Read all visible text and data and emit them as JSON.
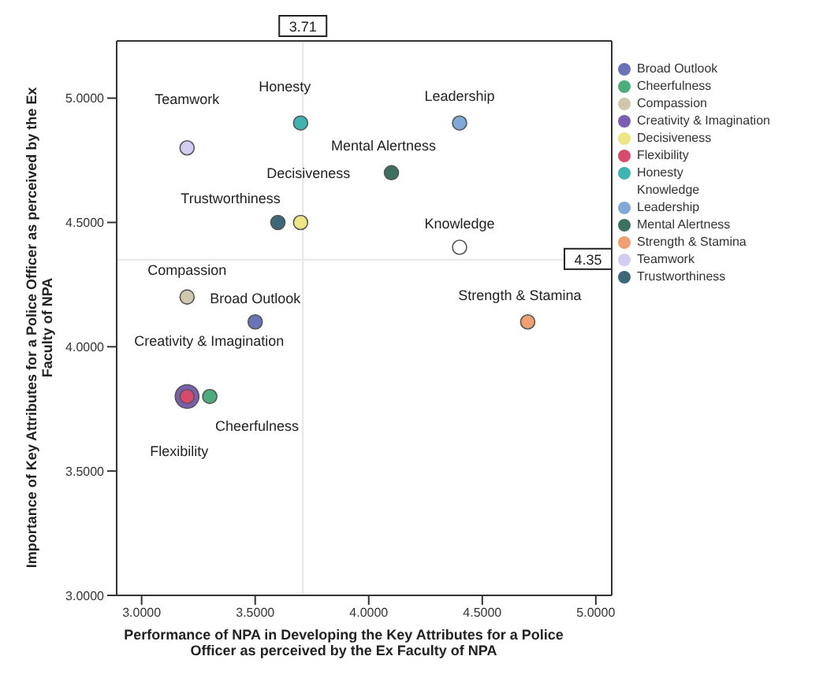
{
  "chart_data": {
    "type": "scatter",
    "xlabel": "Performance of NPA in Developing the Key Attributes for a Police Officer as perceived by the Ex Faculty of NPA",
    "ylabel": "Importance of Key Attributes for a Police Officer as perceived by the Ex Faculty of NPA",
    "xlim": [
      2.89,
      5.07
    ],
    "ylim": [
      3.0,
      5.23
    ],
    "xticks": [
      {
        "value": 3,
        "label": "3.0000"
      },
      {
        "value": 3.5,
        "label": "3.5000"
      },
      {
        "value": 4,
        "label": "4.0000"
      },
      {
        "value": 4.5,
        "label": "4.5000"
      },
      {
        "value": 5,
        "label": "5.0000"
      }
    ],
    "yticks": [
      {
        "value": 3,
        "label": "3.0000"
      },
      {
        "value": 3.5,
        "label": "3.5000"
      },
      {
        "value": 4,
        "label": "4.0000"
      },
      {
        "value": 4.5,
        "label": "4.5000"
      },
      {
        "value": 5,
        "label": "5.0000"
      }
    ],
    "grid": false,
    "legend": "right",
    "marker": "circle",
    "ref_lines": [
      {
        "axis": "x",
        "value": 3.71,
        "label": "3.71"
      },
      {
        "axis": "y",
        "value": 4.35,
        "label": "4.35"
      }
    ],
    "series": [
      {
        "name": "Broad Outlook",
        "color": "#6a72b8",
        "x": [
          3.5
        ],
        "values": [
          4.1
        ]
      },
      {
        "name": "Cheerfulness",
        "color": "#4cad7c",
        "x": [
          3.3
        ],
        "values": [
          3.8
        ]
      },
      {
        "name": "Compassion",
        "color": "#cfc7ae",
        "x": [
          3.2
        ],
        "values": [
          4.2
        ]
      },
      {
        "name": "Creativity & Imagination",
        "color": "#7a5fb0",
        "x": [
          3.2
        ],
        "values": [
          3.8
        ]
      },
      {
        "name": "Decisiveness",
        "color": "#ece784",
        "x": [
          3.7
        ],
        "values": [
          4.5
        ]
      },
      {
        "name": "Flexibility",
        "color": "#d84a6a",
        "x": [
          3.2
        ],
        "values": [
          3.8
        ]
      },
      {
        "name": "Honesty",
        "color": "#3fb3b0",
        "x": [
          3.7
        ],
        "values": [
          4.9
        ]
      },
      {
        "name": "Knowledge",
        "color": "#ffffff",
        "x": [
          4.4
        ],
        "values": [
          4.4
        ]
      },
      {
        "name": "Leadership",
        "color": "#80a8d8",
        "x": [
          4.4
        ],
        "values": [
          4.9
        ]
      },
      {
        "name": "Mental Alertness",
        "color": "#3c7060",
        "x": [
          4.1
        ],
        "values": [
          4.7
        ]
      },
      {
        "name": "Strength & Stamina",
        "color": "#f0a070",
        "x": [
          4.7
        ],
        "values": [
          4.1
        ]
      },
      {
        "name": "Teamwork",
        "color": "#d4ccf2",
        "x": [
          3.2
        ],
        "values": [
          4.8
        ]
      },
      {
        "name": "Trustworthiness",
        "color": "#3c6878",
        "x": [
          3.6
        ],
        "values": [
          4.5
        ]
      }
    ]
  }
}
